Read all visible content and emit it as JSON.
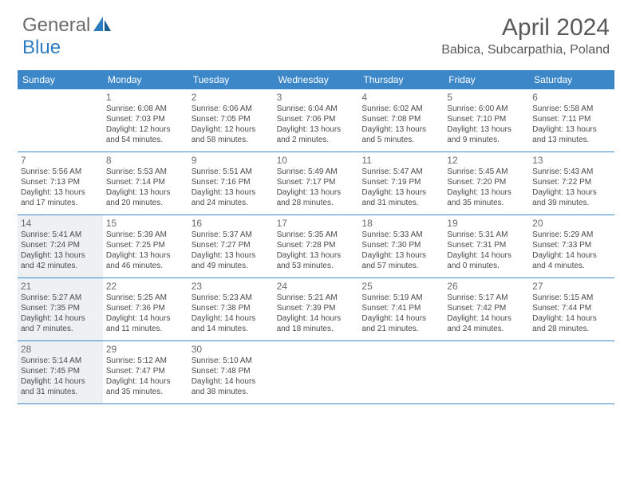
{
  "brand": {
    "part1": "General",
    "part2": "Blue"
  },
  "title": "April 2024",
  "location": "Babica, Subcarpathia, Poland",
  "colors": {
    "header_bg": "#3b87c8",
    "border": "#3b87c8",
    "shaded_bg": "#eef1f4",
    "text": "#4a4a4a",
    "title_text": "#595959",
    "logo_gray": "#6a6a6a",
    "logo_blue": "#2d7cc0"
  },
  "days_of_week": [
    "Sunday",
    "Monday",
    "Tuesday",
    "Wednesday",
    "Thursday",
    "Friday",
    "Saturday"
  ],
  "weeks": [
    [
      {
        "day": "",
        "lines": []
      },
      {
        "day": "1",
        "lines": [
          "Sunrise: 6:08 AM",
          "Sunset: 7:03 PM",
          "Daylight: 12 hours",
          "and 54 minutes."
        ]
      },
      {
        "day": "2",
        "lines": [
          "Sunrise: 6:06 AM",
          "Sunset: 7:05 PM",
          "Daylight: 12 hours",
          "and 58 minutes."
        ]
      },
      {
        "day": "3",
        "lines": [
          "Sunrise: 6:04 AM",
          "Sunset: 7:06 PM",
          "Daylight: 13 hours",
          "and 2 minutes."
        ]
      },
      {
        "day": "4",
        "lines": [
          "Sunrise: 6:02 AM",
          "Sunset: 7:08 PM",
          "Daylight: 13 hours",
          "and 5 minutes."
        ]
      },
      {
        "day": "5",
        "lines": [
          "Sunrise: 6:00 AM",
          "Sunset: 7:10 PM",
          "Daylight: 13 hours",
          "and 9 minutes."
        ]
      },
      {
        "day": "6",
        "lines": [
          "Sunrise: 5:58 AM",
          "Sunset: 7:11 PM",
          "Daylight: 13 hours",
          "and 13 minutes."
        ]
      }
    ],
    [
      {
        "day": "7",
        "lines": [
          "Sunrise: 5:56 AM",
          "Sunset: 7:13 PM",
          "Daylight: 13 hours",
          "and 17 minutes."
        ]
      },
      {
        "day": "8",
        "lines": [
          "Sunrise: 5:53 AM",
          "Sunset: 7:14 PM",
          "Daylight: 13 hours",
          "and 20 minutes."
        ]
      },
      {
        "day": "9",
        "lines": [
          "Sunrise: 5:51 AM",
          "Sunset: 7:16 PM",
          "Daylight: 13 hours",
          "and 24 minutes."
        ]
      },
      {
        "day": "10",
        "lines": [
          "Sunrise: 5:49 AM",
          "Sunset: 7:17 PM",
          "Daylight: 13 hours",
          "and 28 minutes."
        ]
      },
      {
        "day": "11",
        "lines": [
          "Sunrise: 5:47 AM",
          "Sunset: 7:19 PM",
          "Daylight: 13 hours",
          "and 31 minutes."
        ]
      },
      {
        "day": "12",
        "lines": [
          "Sunrise: 5:45 AM",
          "Sunset: 7:20 PM",
          "Daylight: 13 hours",
          "and 35 minutes."
        ]
      },
      {
        "day": "13",
        "lines": [
          "Sunrise: 5:43 AM",
          "Sunset: 7:22 PM",
          "Daylight: 13 hours",
          "and 39 minutes."
        ]
      }
    ],
    [
      {
        "day": "14",
        "shaded": true,
        "lines": [
          "Sunrise: 5:41 AM",
          "Sunset: 7:24 PM",
          "Daylight: 13 hours",
          "and 42 minutes."
        ]
      },
      {
        "day": "15",
        "lines": [
          "Sunrise: 5:39 AM",
          "Sunset: 7:25 PM",
          "Daylight: 13 hours",
          "and 46 minutes."
        ]
      },
      {
        "day": "16",
        "lines": [
          "Sunrise: 5:37 AM",
          "Sunset: 7:27 PM",
          "Daylight: 13 hours",
          "and 49 minutes."
        ]
      },
      {
        "day": "17",
        "lines": [
          "Sunrise: 5:35 AM",
          "Sunset: 7:28 PM",
          "Daylight: 13 hours",
          "and 53 minutes."
        ]
      },
      {
        "day": "18",
        "lines": [
          "Sunrise: 5:33 AM",
          "Sunset: 7:30 PM",
          "Daylight: 13 hours",
          "and 57 minutes."
        ]
      },
      {
        "day": "19",
        "lines": [
          "Sunrise: 5:31 AM",
          "Sunset: 7:31 PM",
          "Daylight: 14 hours",
          "and 0 minutes."
        ]
      },
      {
        "day": "20",
        "lines": [
          "Sunrise: 5:29 AM",
          "Sunset: 7:33 PM",
          "Daylight: 14 hours",
          "and 4 minutes."
        ]
      }
    ],
    [
      {
        "day": "21",
        "shaded": true,
        "lines": [
          "Sunrise: 5:27 AM",
          "Sunset: 7:35 PM",
          "Daylight: 14 hours",
          "and 7 minutes."
        ]
      },
      {
        "day": "22",
        "lines": [
          "Sunrise: 5:25 AM",
          "Sunset: 7:36 PM",
          "Daylight: 14 hours",
          "and 11 minutes."
        ]
      },
      {
        "day": "23",
        "lines": [
          "Sunrise: 5:23 AM",
          "Sunset: 7:38 PM",
          "Daylight: 14 hours",
          "and 14 minutes."
        ]
      },
      {
        "day": "24",
        "lines": [
          "Sunrise: 5:21 AM",
          "Sunset: 7:39 PM",
          "Daylight: 14 hours",
          "and 18 minutes."
        ]
      },
      {
        "day": "25",
        "lines": [
          "Sunrise: 5:19 AM",
          "Sunset: 7:41 PM",
          "Daylight: 14 hours",
          "and 21 minutes."
        ]
      },
      {
        "day": "26",
        "lines": [
          "Sunrise: 5:17 AM",
          "Sunset: 7:42 PM",
          "Daylight: 14 hours",
          "and 24 minutes."
        ]
      },
      {
        "day": "27",
        "lines": [
          "Sunrise: 5:15 AM",
          "Sunset: 7:44 PM",
          "Daylight: 14 hours",
          "and 28 minutes."
        ]
      }
    ],
    [
      {
        "day": "28",
        "shaded": true,
        "lines": [
          "Sunrise: 5:14 AM",
          "Sunset: 7:45 PM",
          "Daylight: 14 hours",
          "and 31 minutes."
        ]
      },
      {
        "day": "29",
        "lines": [
          "Sunrise: 5:12 AM",
          "Sunset: 7:47 PM",
          "Daylight: 14 hours",
          "and 35 minutes."
        ]
      },
      {
        "day": "30",
        "lines": [
          "Sunrise: 5:10 AM",
          "Sunset: 7:48 PM",
          "Daylight: 14 hours",
          "and 38 minutes."
        ]
      },
      {
        "day": "",
        "lines": []
      },
      {
        "day": "",
        "lines": []
      },
      {
        "day": "",
        "lines": []
      },
      {
        "day": "",
        "lines": []
      }
    ]
  ]
}
